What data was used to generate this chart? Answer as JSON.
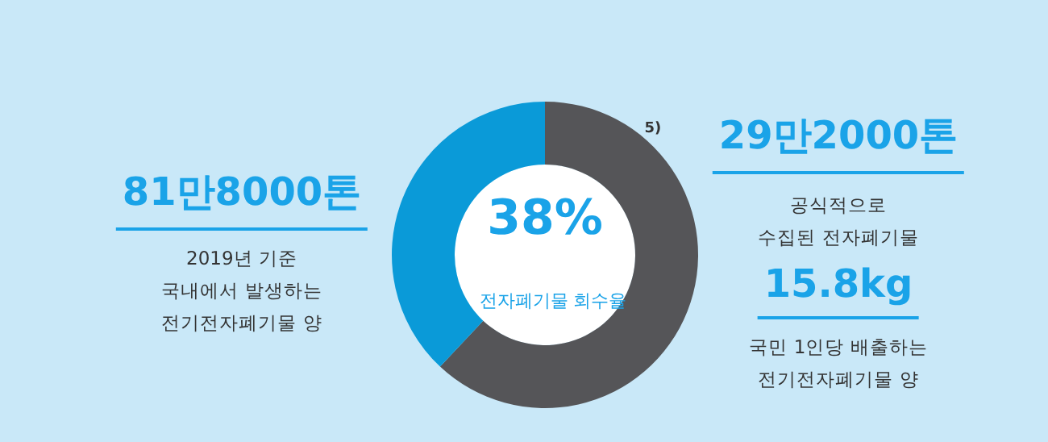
{
  "chart_data": {
    "type": "donut",
    "title": "전자폐기물 회수율",
    "categories": [
      null,
      null
    ],
    "values": [
      62,
      38
    ],
    "colors": [
      "#555558",
      "#0a9ad8"
    ],
    "annotations": [
      "38%",
      "5)",
      "81만8000톤",
      "2019년 기준\n국내에서 발생하는\n전기전자폐기물 양",
      "29만2000톤",
      "공식적으로\n수집된 전자폐기물",
      "15.8kg",
      "국민 1인당 배출하는\n전기전자폐기물 양"
    ]
  }
}
